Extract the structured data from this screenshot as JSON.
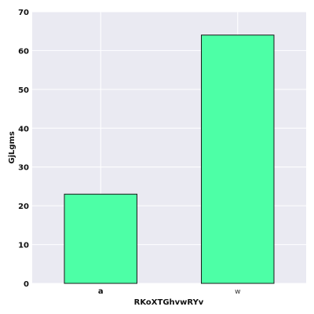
{
  "chart_data": {
    "type": "bar",
    "title": "",
    "xlabel": "RKoXTGhvwRYv",
    "ylabel": "GjLgms",
    "categories": [
      "a",
      "w"
    ],
    "values": [
      23,
      64
    ],
    "ylim": [
      0,
      70
    ],
    "yticks": [
      0,
      10,
      20,
      30,
      40,
      50,
      60,
      70
    ],
    "grid": true,
    "bar_color": "#4dffa6",
    "bar_edge_color": "#1a1a1a",
    "background_color": "#eaeaf2",
    "grid_color": "#ffffff"
  }
}
